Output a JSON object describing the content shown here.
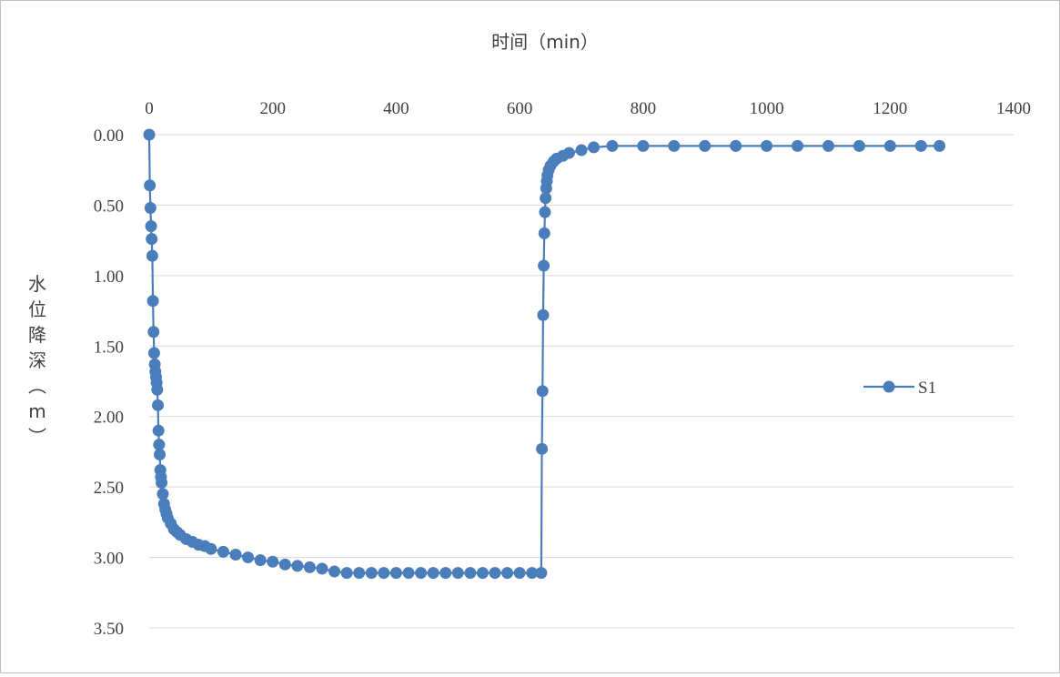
{
  "chart_data": {
    "type": "scatter",
    "xlabel": "时间（min）",
    "ylabel": "水位降深（m）",
    "xlim": [
      0,
      1400
    ],
    "ylim": [
      0,
      3.5
    ],
    "y_inverted": true,
    "x_axis_position": "top",
    "x_ticks": [
      "0",
      "200",
      "400",
      "600",
      "800",
      "1000",
      "1200",
      "1400"
    ],
    "y_ticks": [
      "0.00",
      "0.50",
      "1.00",
      "1.50",
      "2.00",
      "2.50",
      "3.00",
      "3.50"
    ],
    "grid": "horizontal",
    "legend_position": "right",
    "colors": {
      "series": "#4a7ebb",
      "grid": "#d9d9d9",
      "frame": "#bfbfbf"
    },
    "series": [
      {
        "name": "S1",
        "marker": "circle",
        "line": true,
        "x": [
          0,
          1,
          2,
          3,
          4,
          5,
          6,
          7,
          8,
          9,
          10,
          11,
          12,
          13,
          14,
          15,
          16,
          17,
          18,
          19,
          20,
          22,
          24,
          26,
          28,
          30,
          35,
          40,
          45,
          50,
          60,
          70,
          80,
          90,
          100,
          120,
          140,
          160,
          180,
          200,
          220,
          240,
          260,
          280,
          300,
          320,
          340,
          360,
          380,
          400,
          420,
          440,
          460,
          480,
          500,
          520,
          540,
          560,
          580,
          600,
          620,
          635,
          636,
          637,
          638,
          639,
          640,
          641,
          642,
          643,
          644,
          645,
          647,
          650,
          655,
          660,
          670,
          680,
          700,
          720,
          750,
          800,
          850,
          900,
          950,
          1000,
          1050,
          1100,
          1150,
          1200,
          1250,
          1280
        ],
        "y": [
          0,
          0.36,
          0.52,
          0.65,
          0.74,
          0.86,
          1.18,
          1.4,
          1.55,
          1.63,
          1.68,
          1.72,
          1.76,
          1.81,
          1.92,
          2.1,
          2.2,
          2.27,
          2.38,
          2.43,
          2.47,
          2.55,
          2.62,
          2.66,
          2.69,
          2.72,
          2.76,
          2.8,
          2.82,
          2.84,
          2.87,
          2.89,
          2.91,
          2.92,
          2.94,
          2.96,
          2.98,
          3.0,
          3.02,
          3.03,
          3.05,
          3.06,
          3.07,
          3.08,
          3.1,
          3.11,
          3.11,
          3.11,
          3.11,
          3.11,
          3.11,
          3.11,
          3.11,
          3.11,
          3.11,
          3.11,
          3.11,
          3.11,
          3.11,
          3.11,
          3.11,
          3.11,
          2.23,
          1.82,
          1.28,
          0.93,
          0.7,
          0.55,
          0.45,
          0.38,
          0.33,
          0.29,
          0.25,
          0.22,
          0.19,
          0.17,
          0.15,
          0.13,
          0.11,
          0.09,
          0.08,
          0.08,
          0.08,
          0.08,
          0.08,
          0.08,
          0.08,
          0.08,
          0.08,
          0.08,
          0.08,
          0.08
        ]
      }
    ]
  }
}
